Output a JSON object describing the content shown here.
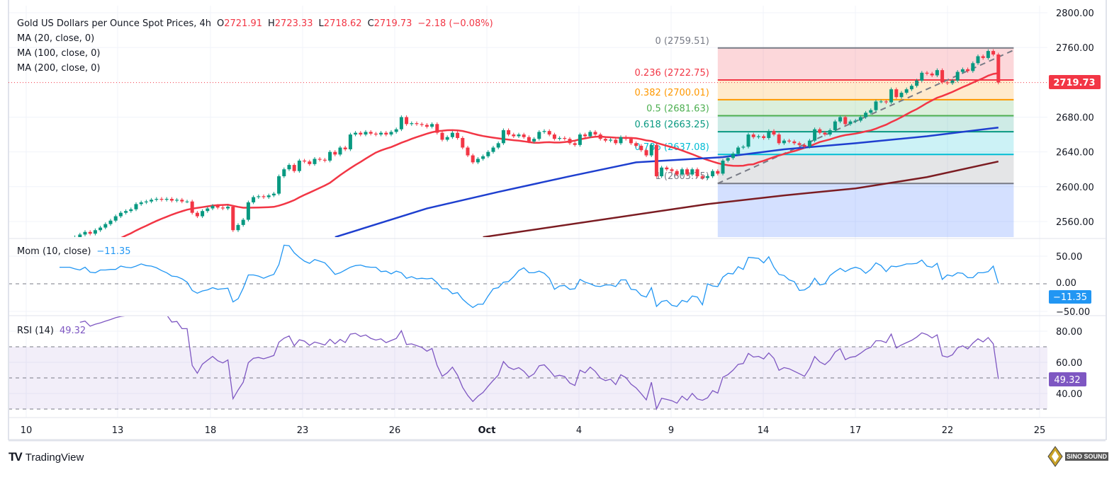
{
  "header": {
    "title": "Gold US Dollars per Ounce Spot Prices, 4h",
    "o_label": "O",
    "o": "2721.91",
    "h_label": "H",
    "h": "2723.33",
    "l_label": "L",
    "l": "2718.62",
    "c_label": "C",
    "c": "2719.73",
    "change": "−2.18 (−0.08%)",
    "ma20": "MA (20, close, 0)",
    "ma100": "MA (100, close, 0)",
    "ma200": "MA (200, close, 0)"
  },
  "indicators": {
    "mom_label": "Mom (10, close)",
    "mom_value": "−11.35",
    "rsi_label": "RSI (14)",
    "rsi_value": "49.32"
  },
  "colors": {
    "up": "#089981",
    "down": "#f23645",
    "ma20": "#f23645",
    "ma100": "#1e3fcf",
    "ma200": "#7b1c22",
    "mom": "#2196f3",
    "rsi": "#7e57c2",
    "last_price": "#f23645"
  },
  "branding": {
    "tradingview": "TradingView",
    "watermark": "SINO SOUND"
  },
  "chart_data": {
    "type": "candlestick",
    "interval": "4h",
    "last_price": "2719.73",
    "price_ticks": [
      "2800.00",
      "2760.00",
      "2680.00",
      "2640.00",
      "2600.00",
      "2560.00"
    ],
    "price_ticks_values": [
      2800,
      2760,
      2680,
      2640,
      2600,
      2560
    ],
    "price_range": [
      2545,
      2806
    ],
    "x_ticks": [
      "10",
      "13",
      "18",
      "23",
      "26",
      "Oct",
      "4",
      "9",
      "14",
      "17",
      "22",
      "25"
    ],
    "mom_ticks": [
      "50.00",
      "0.00",
      "−50.00"
    ],
    "mom_ticks_values": [
      50,
      0,
      -50
    ],
    "rsi_ticks": [
      "80.00",
      "60.00",
      "40.00"
    ],
    "rsi_ticks_values": [
      80,
      60,
      40
    ],
    "rsi_bands": [
      70,
      50,
      30
    ],
    "closes": [
      2505,
      2510,
      2508,
      2515,
      2520,
      2518,
      2525,
      2530,
      2528,
      2532,
      2535,
      2540,
      2538,
      2542,
      2545,
      2548,
      2546,
      2550,
      2553,
      2557,
      2561,
      2566,
      2570,
      2572,
      2574,
      2580,
      2582,
      2583,
      2585,
      2586,
      2585,
      2586,
      2584,
      2585,
      2583,
      2583,
      2570,
      2566,
      2572,
      2575,
      2578,
      2576,
      2575,
      2577,
      2550,
      2556,
      2562,
      2582,
      2588,
      2589,
      2588,
      2590,
      2592,
      2612,
      2620,
      2625,
      2618,
      2630,
      2629,
      2626,
      2632,
      2631,
      2630,
      2640,
      2637,
      2645,
      2643,
      2660,
      2662,
      2660,
      2663,
      2661,
      2660,
      2662,
      2660,
      2663,
      2666,
      2680,
      2672,
      2673,
      2672,
      2671,
      2669,
      2672,
      2662,
      2654,
      2657,
      2662,
      2656,
      2645,
      2636,
      2628,
      2632,
      2635,
      2640,
      2645,
      2650,
      2665,
      2660,
      2658,
      2660,
      2657,
      2652,
      2655,
      2663,
      2664,
      2660,
      2655,
      2656,
      2655,
      2650,
      2648,
      2660,
      2658,
      2663,
      2660,
      2655,
      2653,
      2654,
      2650,
      2657,
      2655,
      2650,
      2647,
      2642,
      2636,
      2648,
      2612,
      2622,
      2620,
      2618,
      2614,
      2620,
      2614,
      2620,
      2612,
      2610,
      2612,
      2618,
      2615,
      2630,
      2633,
      2638,
      2645,
      2646,
      2660,
      2657,
      2658,
      2656,
      2664,
      2660,
      2650,
      2653,
      2652,
      2650,
      2648,
      2646,
      2653,
      2666,
      2662,
      2660,
      2665,
      2675,
      2680,
      2672,
      2675,
      2676,
      2680,
      2685,
      2688,
      2698,
      2698,
      2697,
      2712,
      2703,
      2708,
      2712,
      2716,
      2722,
      2731,
      2730,
      2728,
      2734,
      2720,
      2719,
      2722,
      2732,
      2735,
      2733,
      2742,
      2750,
      2748,
      2756,
      2752,
      2719.73
    ],
    "ma100_points": [
      [
        64,
        2542
      ],
      [
        82,
        2575
      ],
      [
        96,
        2594
      ],
      [
        110,
        2612
      ],
      [
        123,
        2628
      ],
      [
        140,
        2634
      ],
      [
        152,
        2643
      ],
      [
        166,
        2650
      ],
      [
        180,
        2658
      ],
      [
        194,
        2668
      ]
    ],
    "ma200_points": [
      [
        93,
        2542
      ],
      [
        137,
        2580
      ],
      [
        152,
        2590
      ],
      [
        166,
        2598
      ],
      [
        180,
        2611
      ],
      [
        194,
        2629
      ]
    ],
    "fibonacci": {
      "start_index": 139,
      "end_index": 197,
      "levels": [
        {
          "ratio": "0",
          "price": 2759.51,
          "label": "0 (2759.51)",
          "color": "#787b86",
          "fill": "#f23645"
        },
        {
          "ratio": "0.236",
          "price": 2722.75,
          "label": "0.236 (2722.75)",
          "color": "#f23645",
          "fill": "#ff9800"
        },
        {
          "ratio": "0.382",
          "price": 2700.01,
          "label": "0.382 (2700.01)",
          "color": "#ff9800",
          "fill": "#4caf50"
        },
        {
          "ratio": "0.5",
          "price": 2681.63,
          "label": "0.5 (2681.63)",
          "color": "#4caf50",
          "fill": "#089981"
        },
        {
          "ratio": "0.618",
          "price": 2663.25,
          "label": "0.618 (2663.25)",
          "color": "#089981",
          "fill": "#00bcd4"
        },
        {
          "ratio": "0.786",
          "price": 2637.08,
          "label": "0.786 (2637.08)",
          "color": "#00bcd4",
          "fill": "#787b86"
        },
        {
          "ratio": "1",
          "price": 2603.75,
          "label": "1 (2603.75)",
          "color": "#787b86",
          "fill": "#2962ff"
        }
      ],
      "trend_line": [
        [
          139,
          2603.75
        ],
        [
          197,
          2757
        ]
      ]
    }
  }
}
